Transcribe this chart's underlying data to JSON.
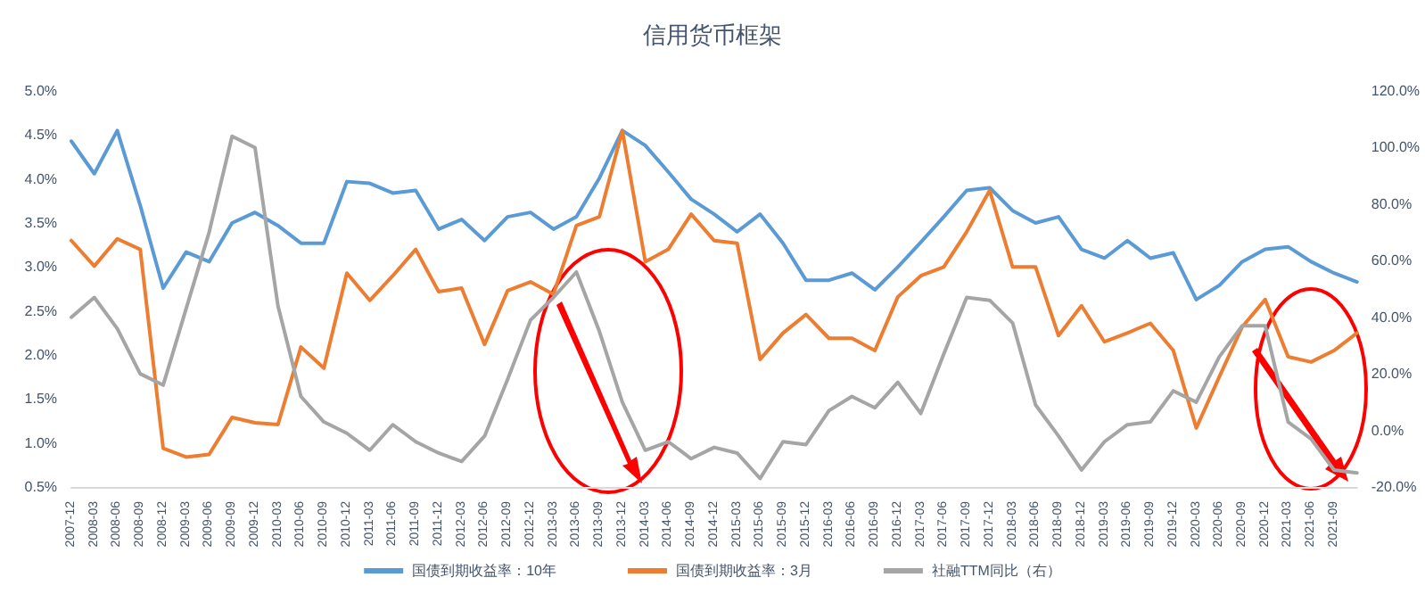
{
  "chart_data": {
    "type": "line",
    "title": "信用货币框架",
    "categories": [
      "2007-12",
      "2008-03",
      "2008-06",
      "2008-09",
      "2008-12",
      "2009-03",
      "2009-06",
      "2009-09",
      "2009-12",
      "2010-03",
      "2010-06",
      "2010-09",
      "2010-12",
      "2011-03",
      "2011-06",
      "2011-09",
      "2011-12",
      "2012-03",
      "2012-06",
      "2012-09",
      "2012-12",
      "2013-03",
      "2013-06",
      "2013-09",
      "2013-12",
      "2014-03",
      "2014-06",
      "2014-09",
      "2014-12",
      "2015-03",
      "2015-06",
      "2015-09",
      "2015-12",
      "2016-03",
      "2016-06",
      "2016-09",
      "2016-12",
      "2017-03",
      "2017-06",
      "2017-09",
      "2017-12",
      "2018-03",
      "2018-06",
      "2018-09",
      "2018-12",
      "2019-03",
      "2019-06",
      "2019-09",
      "2019-12",
      "2020-03",
      "2020-06",
      "2020-09",
      "2020-12",
      "2021-03",
      "2021-06",
      "2021-09",
      null
    ],
    "series": [
      {
        "name": "国债到期收益率：10年",
        "color": "#5b9bd5",
        "values": [
          4.43,
          4.06,
          4.55,
          3.7,
          2.76,
          3.17,
          3.06,
          3.5,
          3.62,
          3.47,
          3.27,
          3.27,
          3.97,
          3.95,
          3.84,
          3.87,
          3.43,
          3.54,
          3.3,
          3.57,
          3.62,
          3.43,
          3.57,
          4.01,
          4.55,
          4.38,
          4.08,
          3.77,
          3.6,
          3.4,
          3.6,
          3.27,
          2.85,
          2.85,
          2.93,
          2.74,
          3.0,
          3.28,
          3.57,
          3.87,
          3.9,
          3.64,
          3.5,
          3.57,
          3.2,
          3.1,
          3.3,
          3.1,
          3.16,
          2.63,
          2.79,
          3.06,
          3.2,
          3.23,
          3.06,
          2.93,
          2.83
        ]
      },
      {
        "name": "国债到期收益率：3月",
        "color": "#ed7d31",
        "values": [
          3.3,
          3.01,
          3.32,
          3.2,
          0.94,
          0.84,
          0.87,
          1.29,
          1.23,
          1.21,
          2.09,
          1.85,
          2.93,
          2.62,
          2.9,
          3.2,
          2.72,
          2.76,
          2.12,
          2.73,
          2.83,
          2.69,
          3.47,
          3.57,
          4.55,
          3.06,
          3.2,
          3.6,
          3.3,
          3.27,
          1.95,
          2.25,
          2.46,
          2.19,
          2.19,
          2.05,
          2.66,
          2.9,
          3.0,
          3.4,
          3.87,
          3.0,
          3.0,
          2.22,
          2.56,
          2.15,
          2.25,
          2.36,
          2.05,
          1.17,
          1.75,
          2.32,
          2.63,
          1.98,
          1.92,
          2.05,
          2.25
        ]
      },
      {
        "name": "社融TTM同比（右）",
        "color": "#a5a5a5",
        "axis": "y2",
        "values": [
          40,
          47,
          36,
          20,
          16,
          43,
          70,
          104,
          100,
          44,
          12,
          3,
          -1,
          -7,
          2,
          -4,
          -8,
          -11,
          -2,
          18,
          39,
          47,
          56,
          35,
          10,
          -7,
          -4,
          -10,
          -6,
          -8,
          -17,
          -4,
          -5,
          7,
          12,
          8,
          17,
          6,
          27,
          47,
          46,
          38,
          9,
          -2,
          -14,
          -4,
          2,
          3,
          14,
          10,
          26,
          37,
          37,
          3,
          -3,
          -14,
          -15
        ]
      }
    ],
    "ylim": [
      0.5,
      5.0
    ],
    "yticks": [
      {
        "value": 0.5,
        "label": "0.5%"
      },
      {
        "value": 1.0,
        "label": "1.0%"
      },
      {
        "value": 1.5,
        "label": "1.5%"
      },
      {
        "value": 2.0,
        "label": "2.0%"
      },
      {
        "value": 2.5,
        "label": "2.5%"
      },
      {
        "value": 3.0,
        "label": "3.0%"
      },
      {
        "value": 3.5,
        "label": "3.5%"
      },
      {
        "value": 4.0,
        "label": "4.0%"
      },
      {
        "value": 4.5,
        "label": "4.5%"
      },
      {
        "value": 5.0,
        "label": "5.0%"
      }
    ],
    "y2lim": [
      -20,
      120
    ],
    "y2ticks": [
      {
        "value": -20,
        "label": "-20.0%"
      },
      {
        "value": 0,
        "label": "0.0%"
      },
      {
        "value": 20,
        "label": "20.0%"
      },
      {
        "value": 40,
        "label": "40.0%"
      },
      {
        "value": 60,
        "label": "60.0%"
      },
      {
        "value": 80,
        "label": "80.0%"
      },
      {
        "value": 100,
        "label": "100.0%"
      },
      {
        "value": 120,
        "label": "120.0%"
      }
    ],
    "legend": "bottom",
    "grid": false,
    "marker": "none",
    "line_style": "solid"
  }
}
